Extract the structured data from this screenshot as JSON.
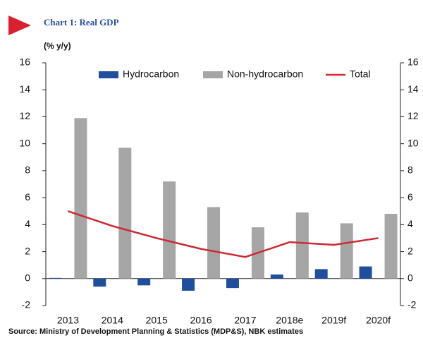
{
  "chart_data": {
    "type": "bar",
    "title": "Chart 1: Real GDP",
    "y_label": "(% y/y)",
    "categories": [
      "2013",
      "2014",
      "2015",
      "2016",
      "2017",
      "2018e",
      "2019f",
      "2020f"
    ],
    "series": [
      {
        "name": "Hydrocarbon",
        "type": "bar",
        "color": "#1f4e9c",
        "values": [
          0.05,
          -0.6,
          -0.5,
          -0.9,
          -0.7,
          0.3,
          0.7,
          0.9
        ]
      },
      {
        "name": "Non-hydrocarbon",
        "type": "bar",
        "color": "#a6a6a6",
        "values": [
          11.9,
          9.7,
          7.2,
          5.3,
          3.8,
          4.9,
          4.1,
          4.8
        ]
      },
      {
        "name": "Total",
        "type": "line",
        "color": "#cc2a36",
        "values": [
          5.0,
          3.9,
          3.0,
          2.2,
          1.6,
          2.7,
          2.5,
          3.0
        ]
      }
    ],
    "ylim": [
      -2,
      16
    ],
    "yticks": [
      -2,
      0,
      2,
      4,
      6,
      8,
      10,
      12,
      14,
      16
    ],
    "y2lim": [
      -2,
      16
    ],
    "y2ticks": [
      -2,
      0,
      2,
      4,
      6,
      8,
      10,
      12,
      14,
      16
    ],
    "legend": "top",
    "source": "Source: Ministry of Development Planning & Statistics (MDP&S), NBK estimates"
  }
}
